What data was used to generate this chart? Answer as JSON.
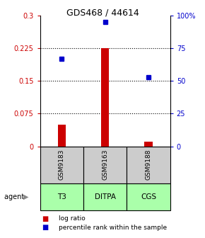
{
  "title": "GDS468 / 44614",
  "samples": [
    "GSM9183",
    "GSM9163",
    "GSM9188"
  ],
  "agents": [
    "T3",
    "DITPA",
    "CGS"
  ],
  "log_ratio": [
    0.05,
    0.225,
    0.01
  ],
  "percentile_rank": [
    0.6667,
    0.95,
    0.53
  ],
  "bar_color": "#cc0000",
  "dot_color": "#0000cc",
  "left_ylim": [
    0,
    0.3
  ],
  "right_ylim": [
    0,
    1.0
  ],
  "left_yticks": [
    0,
    0.075,
    0.15,
    0.225,
    0.3
  ],
  "left_yticklabels": [
    "0",
    "0.075",
    "0.15",
    "0.225",
    "0.3"
  ],
  "right_yticks": [
    0,
    0.25,
    0.5,
    0.75,
    1.0
  ],
  "right_yticklabels": [
    "0",
    "25",
    "50",
    "75",
    "100%"
  ],
  "sample_box_color": "#cccccc",
  "agent_box_color": "#aaffaa",
  "legend_log_ratio": "log ratio",
  "legend_percentile": "percentile rank within the sample",
  "x_positions": [
    0,
    1,
    2
  ],
  "bar_width": 0.18,
  "marker_size": 5
}
